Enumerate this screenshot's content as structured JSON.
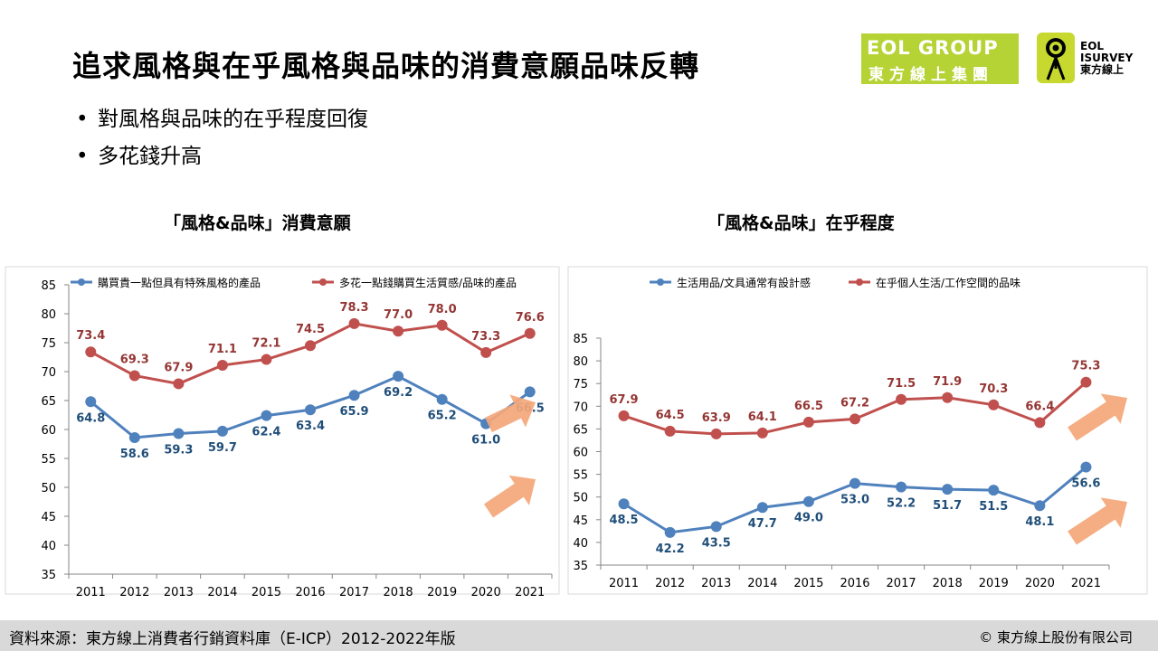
{
  "slide": {
    "title": "追求風格與在乎風格與品味的消費意願品味反轉",
    "bullets": [
      "對風格與品味的在乎程度回復",
      "多花錢升高"
    ],
    "bullet_symbol": "•"
  },
  "logos": {
    "eol_line1": "EOL GROUP",
    "eol_line2": "東方線上集團",
    "isurvey_line1": "EOL",
    "isurvey_line2": "ISURVEY",
    "isurvey_line3": "東方線上"
  },
  "footer": {
    "source": "資料來源：東方線上消費者行銷資料庫（E-ICP）2012-2022年版",
    "copyright": "© 東方線上股份有限公司"
  },
  "colors": {
    "blue": "#4f81bd",
    "red": "#c0504d",
    "blue_label": "#1f4e79",
    "red_label": "#943634",
    "arrow": "#f4a77a",
    "logo_green": "#b5d334"
  },
  "chart_data": [
    {
      "type": "line",
      "title": "「風格&品味」消費意願",
      "x": [
        "2011",
        "2012",
        "2013",
        "2014",
        "2015",
        "2016",
        "2017",
        "2018",
        "2019",
        "2020",
        "2021"
      ],
      "ylim": [
        35,
        85
      ],
      "yticks": [
        35,
        40,
        45,
        50,
        55,
        60,
        65,
        70,
        75,
        80,
        85
      ],
      "grid": false,
      "legend": "top",
      "series": [
        {
          "name": "購買貴一點但具有特殊風格的產品",
          "color": "#4f81bd",
          "values": [
            64.8,
            58.6,
            59.3,
            59.7,
            62.4,
            63.4,
            65.9,
            69.2,
            65.2,
            61.0,
            66.5
          ],
          "labels": [
            "64.8",
            "58.6",
            "59.3",
            "59.7",
            "62.4",
            "63.4",
            "65.9",
            "69.2",
            "65.2",
            "61.0",
            "66.5"
          ]
        },
        {
          "name": "多花一點錢購買生活質感/品味的產品",
          "color": "#c0504d",
          "values": [
            73.4,
            69.3,
            67.9,
            71.1,
            72.1,
            74.5,
            78.3,
            77.0,
            78.0,
            73.3,
            76.6
          ],
          "labels": [
            "73.4",
            "69.3",
            "67.9",
            "71.1",
            "72.1",
            "74.5",
            "78.3",
            "77.0",
            "78.0",
            "73.3",
            "76.6"
          ]
        }
      ]
    },
    {
      "type": "line",
      "title": "「風格&品味」在乎程度",
      "x": [
        "2011",
        "2012",
        "2013",
        "2014",
        "2015",
        "2016",
        "2017",
        "2018",
        "2019",
        "2020",
        "2021"
      ],
      "ylim": [
        35,
        85
      ],
      "yticks": [
        35,
        40,
        45,
        50,
        55,
        60,
        65,
        70,
        75,
        80,
        85
      ],
      "grid": false,
      "legend": "top",
      "series": [
        {
          "name": "生活用品/文具通常有設計感",
          "color": "#4f81bd",
          "values": [
            48.5,
            42.2,
            43.5,
            47.7,
            49.0,
            53.0,
            52.2,
            51.7,
            51.5,
            48.1,
            56.6
          ],
          "labels": [
            "48.5",
            "42.2",
            "43.5",
            "47.7",
            "49.0",
            "53.0",
            "52.2",
            "51.7",
            "51.5",
            "48.1",
            "56.6"
          ]
        },
        {
          "name": "在乎個人生活/工作空間的品味",
          "color": "#c0504d",
          "values": [
            67.9,
            64.5,
            63.9,
            64.1,
            66.5,
            67.2,
            71.5,
            71.9,
            70.3,
            66.4,
            75.3
          ],
          "labels": [
            "67.9",
            "64.5",
            "63.9",
            "64.1",
            "66.5",
            "67.2",
            "71.5",
            "71.9",
            "70.3",
            "66.4",
            "75.3"
          ]
        }
      ]
    }
  ]
}
